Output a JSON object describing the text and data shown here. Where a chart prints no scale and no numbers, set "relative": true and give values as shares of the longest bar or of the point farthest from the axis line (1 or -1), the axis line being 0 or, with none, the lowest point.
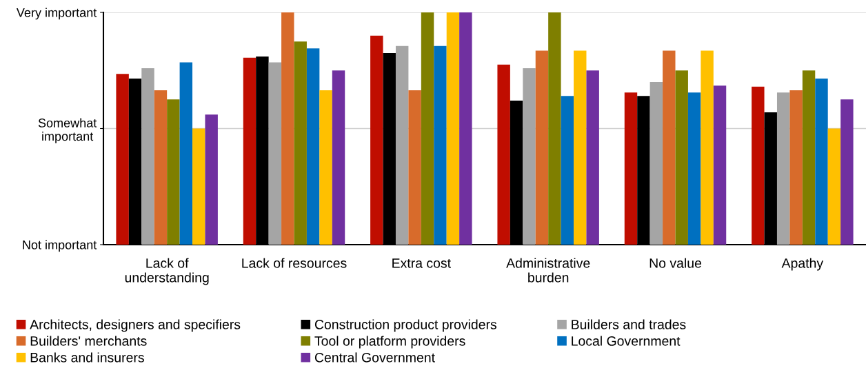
{
  "chart_data": {
    "type": "bar",
    "relative": true,
    "categories": [
      "Lack of\nunderstanding",
      "Lack of resources",
      "Extra cost",
      "Administrative\nburden",
      "No value",
      "Apathy"
    ],
    "series": [
      {
        "name": "Architects, designers and specifiers",
        "color": "#c00d00",
        "values": [
          0.735,
          0.805,
          0.9,
          0.775,
          0.655,
          0.68
        ]
      },
      {
        "name": "Construction product providers",
        "color": "#000000",
        "values": [
          0.715,
          0.81,
          0.825,
          0.62,
          0.64,
          0.57
        ]
      },
      {
        "name": "Builders and trades",
        "color": "#a5a5a5",
        "values": [
          0.76,
          0.785,
          0.855,
          0.76,
          0.7,
          0.655
        ]
      },
      {
        "name": "Builders' merchants",
        "color": "#d86b2b",
        "values": [
          0.665,
          1,
          0.665,
          0.835,
          0.835,
          0.665
        ]
      },
      {
        "name": "Tool or platform providers",
        "color": "#7f7f00",
        "values": [
          0.625,
          0.875,
          1,
          1,
          0.75,
          0.75
        ]
      },
      {
        "name": "Local Government",
        "color": "#0070c0",
        "values": [
          0.785,
          0.845,
          0.855,
          0.64,
          0.655,
          0.715
        ]
      },
      {
        "name": "Banks and insurers",
        "color": "#ffc000",
        "values": [
          0.5,
          0.665,
          1,
          0.835,
          0.835,
          0.5
        ]
      },
      {
        "name": "Central Government",
        "color": "#7030a0",
        "values": [
          0.56,
          0.75,
          1,
          0.75,
          0.685,
          0.625
        ]
      }
    ],
    "ref_lines": [
      {
        "axis": "y",
        "value": 0,
        "label": "Not important",
        "color": "#000000"
      },
      {
        "axis": "y",
        "value": 0.5,
        "label": "Somewhat\nimportant",
        "color": "#d0d0d0"
      },
      {
        "axis": "y",
        "value": 1,
        "label": "Very important",
        "color": "#d0d0d0"
      }
    ],
    "legend": "bottom"
  }
}
